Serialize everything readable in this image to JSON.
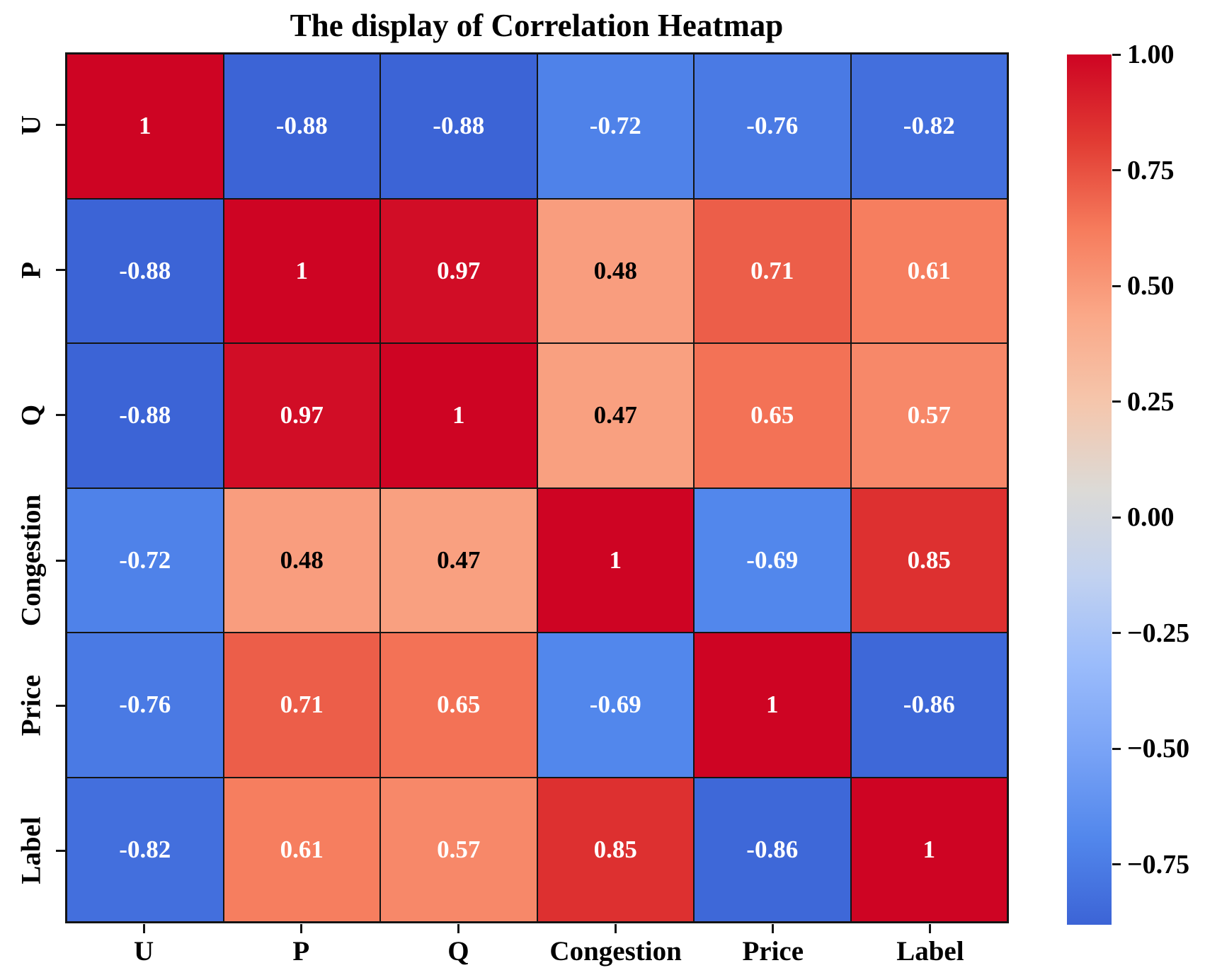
{
  "title": "The display of Correlation Heatmap",
  "chart_data": {
    "type": "heatmap",
    "categories": [
      "U",
      "P",
      "Q",
      "Congestion",
      "Price",
      "Label"
    ],
    "matrix": [
      [
        1,
        -0.88,
        -0.88,
        -0.72,
        -0.76,
        -0.82
      ],
      [
        -0.88,
        1,
        0.97,
        0.48,
        0.71,
        0.61
      ],
      [
        -0.88,
        0.97,
        1,
        0.47,
        0.65,
        0.57
      ],
      [
        -0.72,
        0.48,
        0.47,
        1,
        -0.69,
        0.85
      ],
      [
        -0.76,
        0.71,
        0.65,
        -0.69,
        1,
        -0.86
      ],
      [
        -0.82,
        0.61,
        0.57,
        0.85,
        -0.86,
        1
      ]
    ],
    "cell_labels": [
      [
        "1",
        "-0.88",
        "-0.88",
        "-0.72",
        "-0.76",
        "-0.82"
      ],
      [
        "-0.88",
        "1",
        "0.97",
        "0.48",
        "0.71",
        "0.61"
      ],
      [
        "-0.88",
        "0.97",
        "1",
        "0.47",
        "0.65",
        "0.57"
      ],
      [
        "-0.72",
        "0.48",
        "0.47",
        "1",
        "-0.69",
        "0.85"
      ],
      [
        "-0.76",
        "0.71",
        "0.65",
        "-0.69",
        "1",
        "-0.86"
      ],
      [
        "-0.82",
        "0.61",
        "0.57",
        "0.85",
        "-0.86",
        "1"
      ]
    ],
    "vmin": -0.88,
    "vmax": 1.0,
    "colormap": "coolwarm",
    "colormap_stops": [
      {
        "t": 0.0,
        "color": "#3C64D6"
      },
      {
        "t": 0.1,
        "color": "#5287EC"
      },
      {
        "t": 0.2,
        "color": "#79A3F6"
      },
      {
        "t": 0.3,
        "color": "#9BBCFB"
      },
      {
        "t": 0.4,
        "color": "#C2D2F0"
      },
      {
        "t": 0.5,
        "color": "#DCDAD6"
      },
      {
        "t": 0.6,
        "color": "#F5C6AC"
      },
      {
        "t": 0.7,
        "color": "#FAA888"
      },
      {
        "t": 0.8,
        "color": "#F67B5C"
      },
      {
        "t": 0.9,
        "color": "#E13B33"
      },
      {
        "t": 1.0,
        "color": "#CE0423"
      }
    ],
    "colorbar_ticks": [
      {
        "value": 1.0,
        "label": "1.00"
      },
      {
        "value": 0.75,
        "label": "0.75"
      },
      {
        "value": 0.5,
        "label": "0.50"
      },
      {
        "value": 0.25,
        "label": "0.25"
      },
      {
        "value": 0.0,
        "label": "0.00"
      },
      {
        "value": -0.25,
        "label": "−0.25"
      },
      {
        "value": -0.5,
        "label": "−0.50"
      },
      {
        "value": -0.75,
        "label": "−0.75"
      }
    ],
    "legend_position": "right",
    "grid_on": true
  },
  "colors": {
    "grid_line": "#141414",
    "annotation_light": "#ffffff",
    "annotation_dark": "#000000",
    "background": "#ffffff"
  }
}
